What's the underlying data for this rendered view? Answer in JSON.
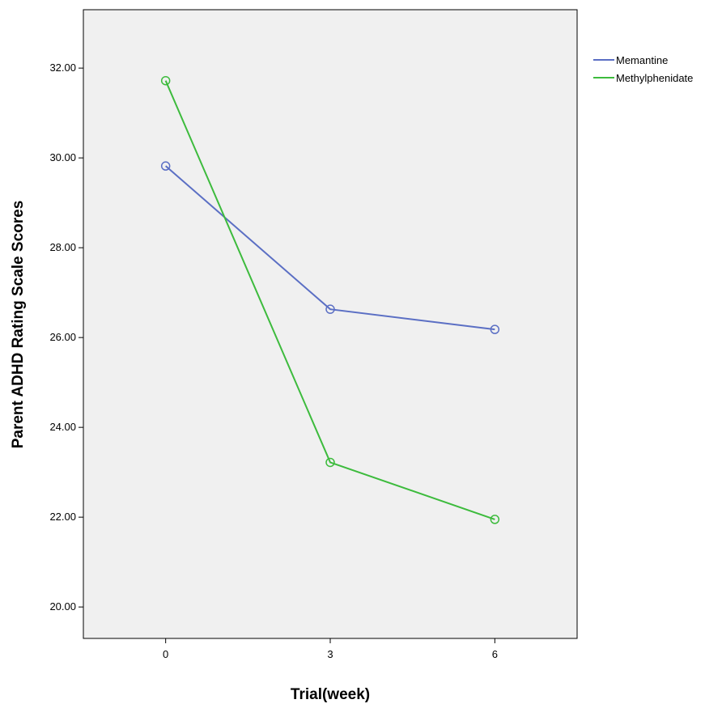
{
  "chart_data": {
    "type": "line",
    "title": "",
    "xlabel": "Trial(week)",
    "ylabel": "Parent ADHD Rating Scale Scores",
    "categories": [
      "0",
      "3",
      "6"
    ],
    "x": [
      0,
      3,
      6
    ],
    "xlim": [
      -1.5,
      7.5
    ],
    "ylim": [
      19.3,
      33.3
    ],
    "yticks": [
      20,
      22,
      24,
      26,
      28,
      30,
      32
    ],
    "ytick_labels": [
      "20.00",
      "22.00",
      "24.00",
      "26.00",
      "28.00",
      "30.00",
      "32.00"
    ],
    "grid": false,
    "legend_position": "top-right outside plot",
    "plot_background": "#f0f0f0",
    "series": [
      {
        "name": "Memantine",
        "color": "#5b6fc4",
        "values": [
          29.82,
          26.63,
          26.18
        ]
      },
      {
        "name": "Methylphenidate",
        "color": "#3dbb3d",
        "values": [
          31.72,
          23.22,
          21.95
        ]
      }
    ]
  }
}
